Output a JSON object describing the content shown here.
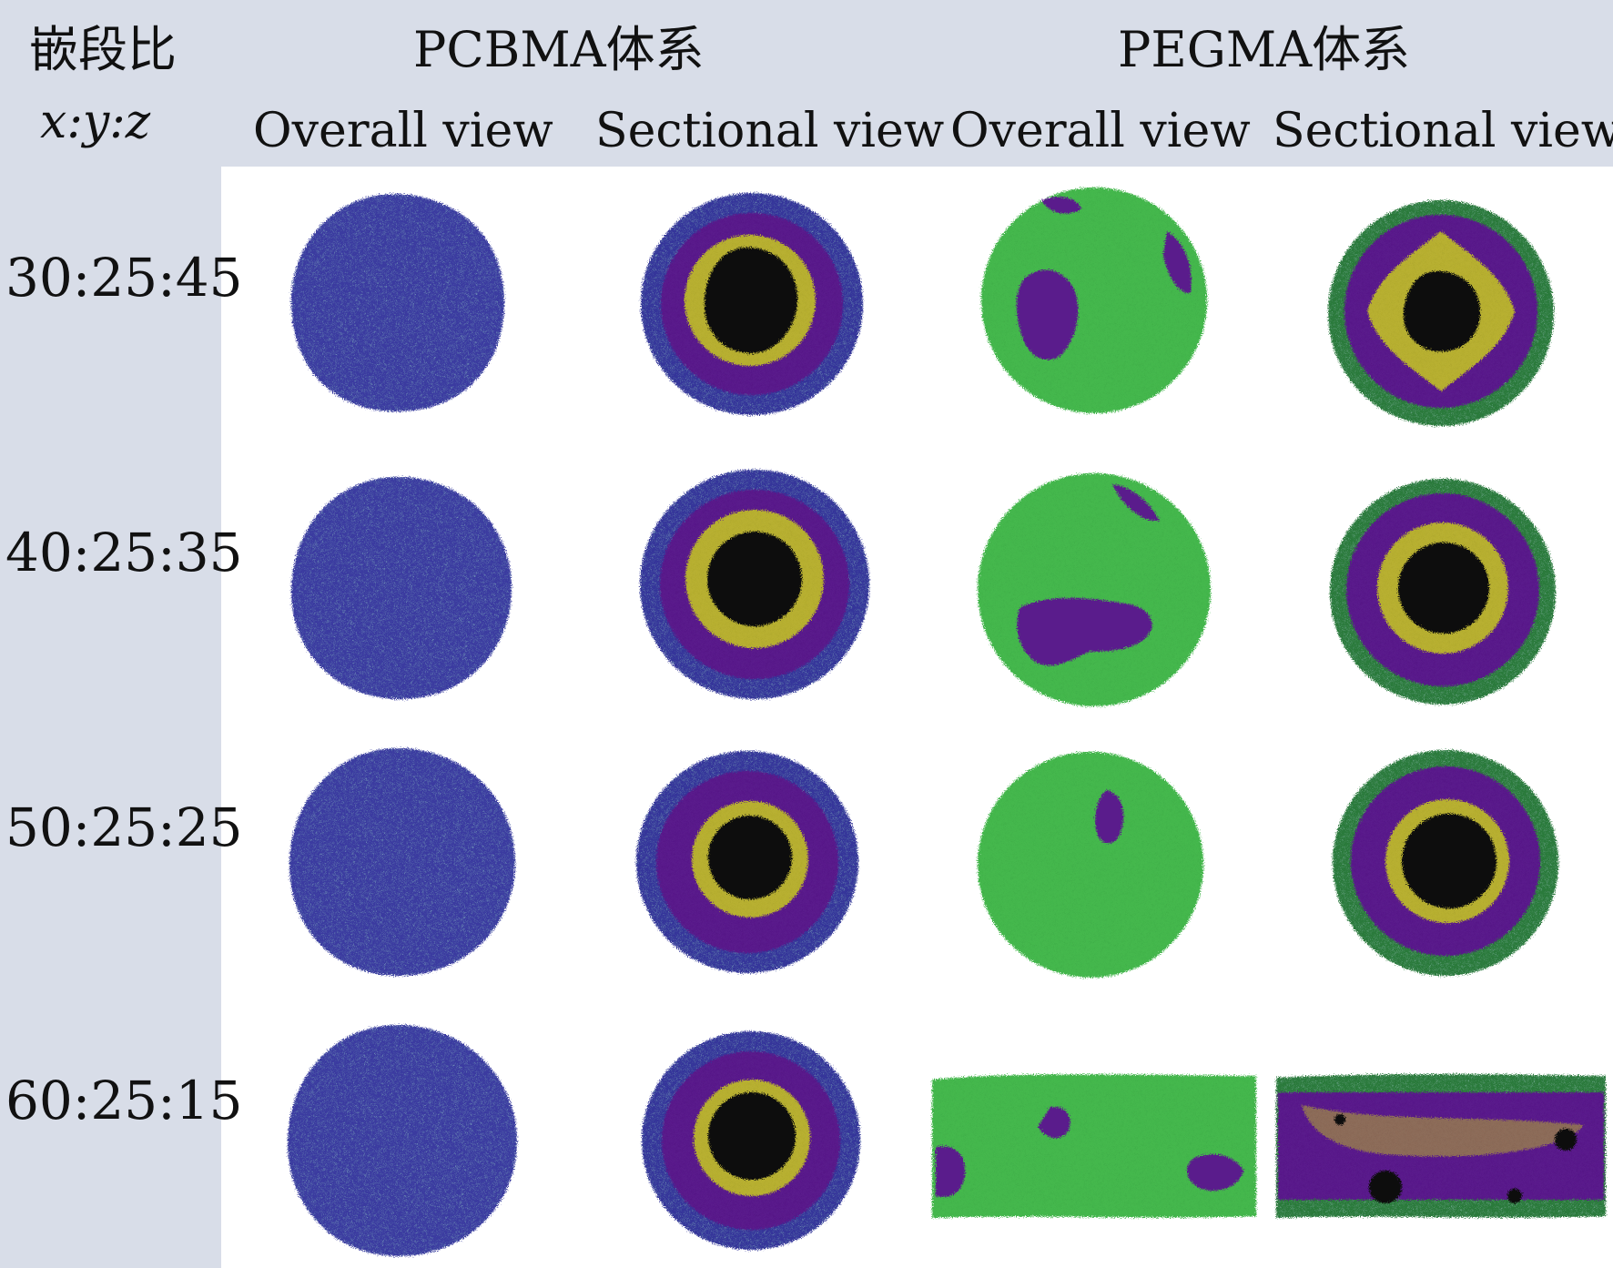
{
  "header": {
    "ratio_title": "嵌段比",
    "ratio_vars": "x:y:z",
    "systems": [
      {
        "name": "PCBMA体系",
        "views": [
          "Overall view",
          "Sectional view"
        ]
      },
      {
        "name": "PEGMA体系",
        "views": [
          "Overall view",
          "Sectional view"
        ]
      }
    ]
  },
  "rows": [
    {
      "ratio": "30:25:45"
    },
    {
      "ratio": "40:25:35"
    },
    {
      "ratio": "50:25:25"
    },
    {
      "ratio": "60:25:15"
    }
  ],
  "colors": {
    "band": "#d8dde8",
    "blue": "#3a3aa0",
    "purple": "#5a1f8c",
    "yellow": "#b8b030",
    "green": "#45b84e",
    "dark_green": "#2a7a3a",
    "core": "#0c0c0c"
  }
}
